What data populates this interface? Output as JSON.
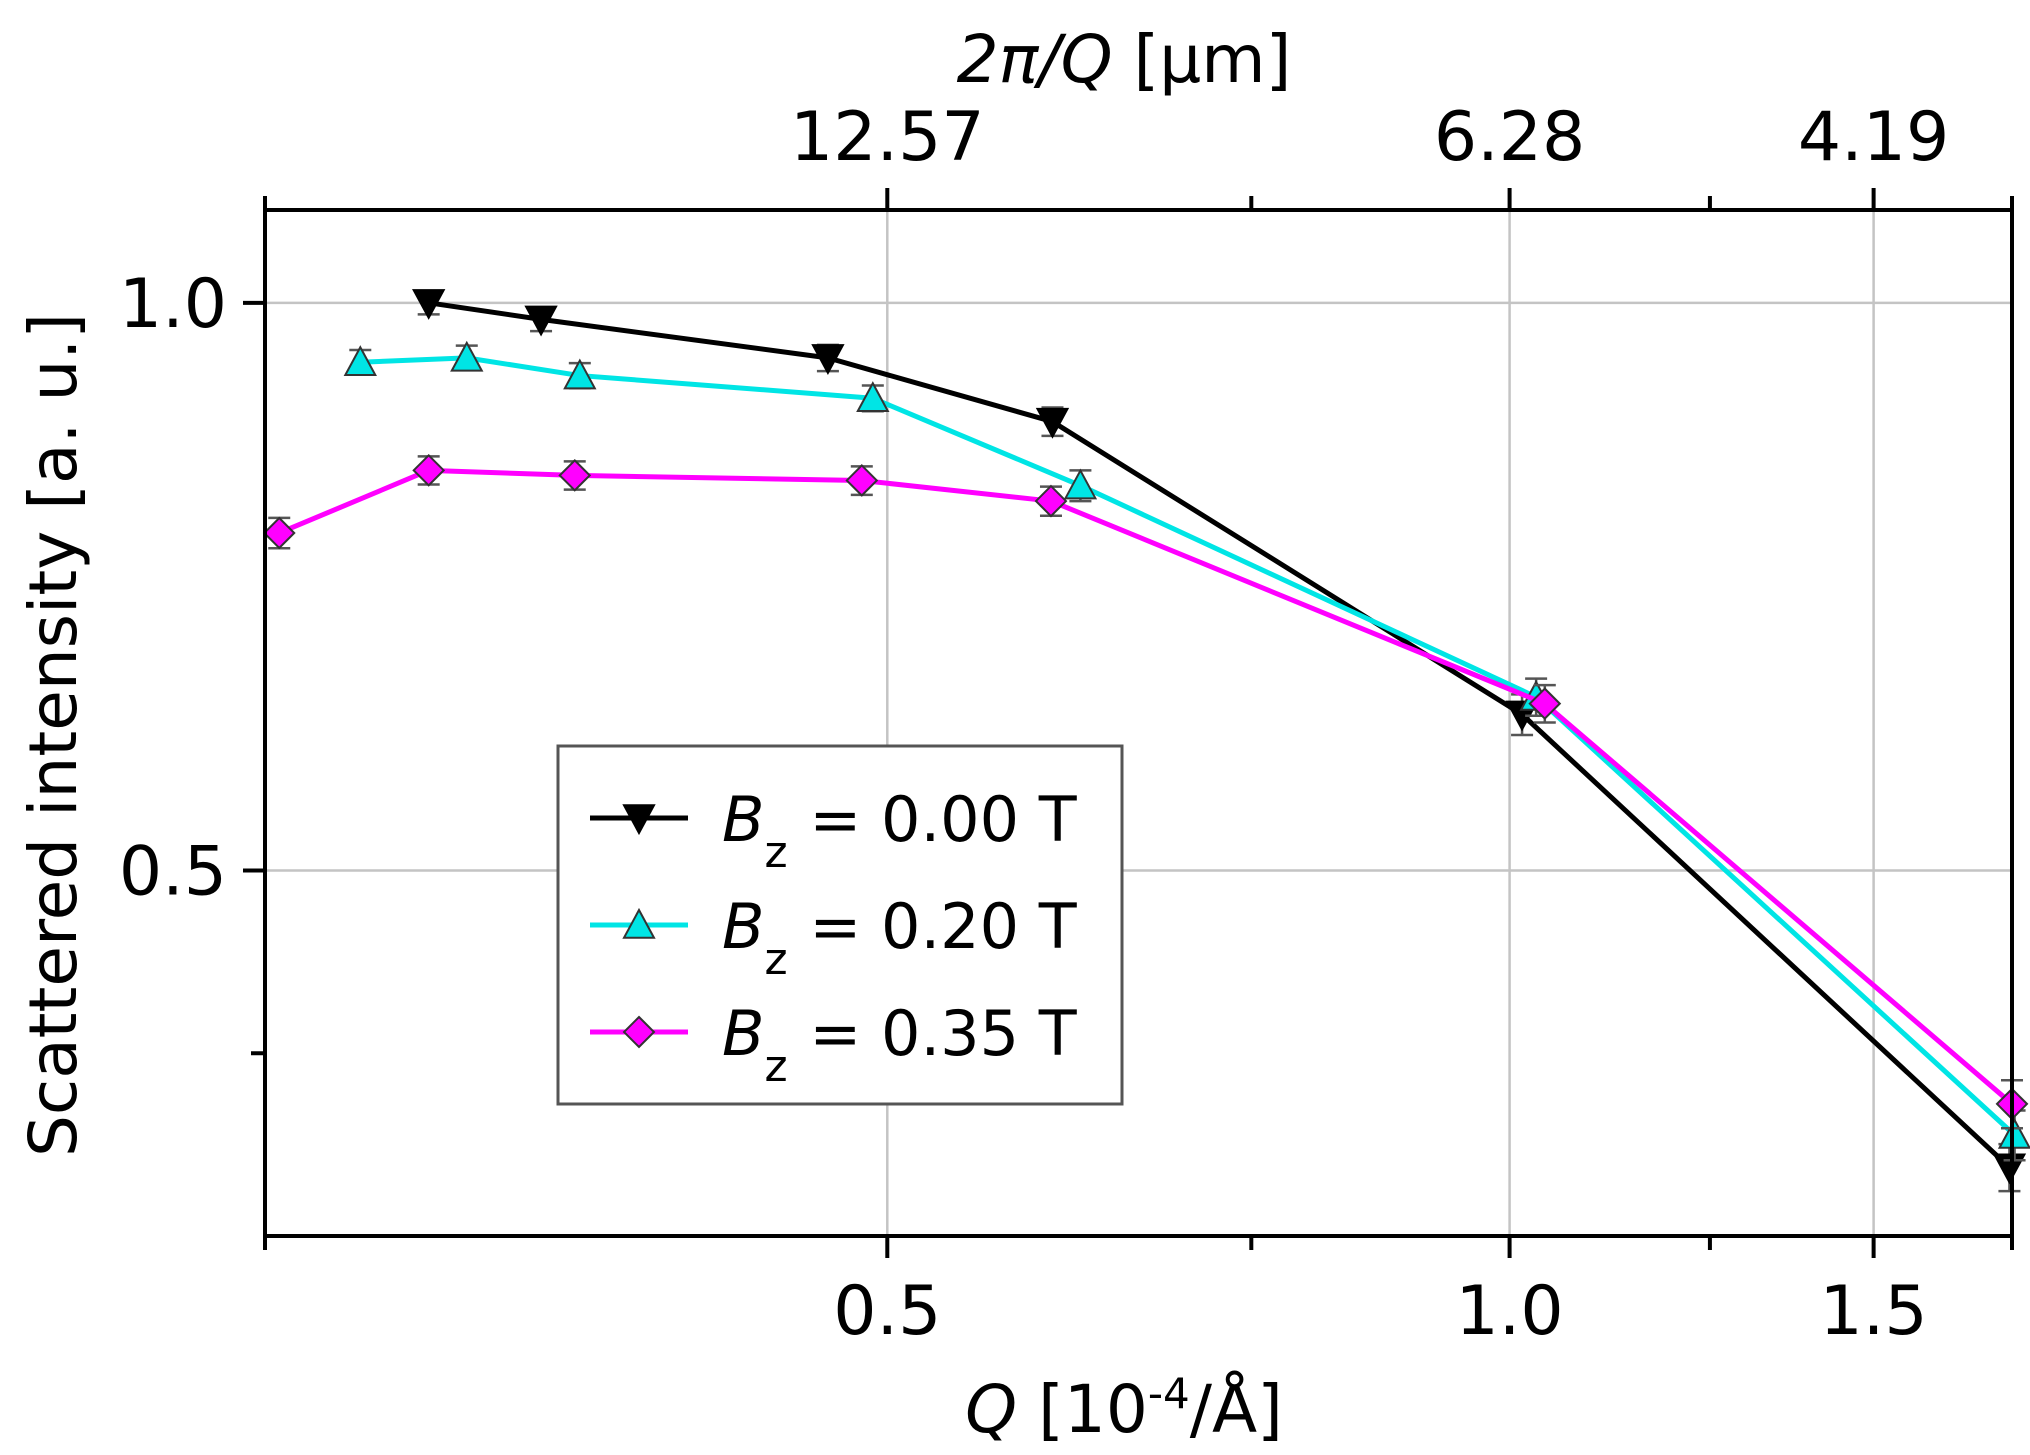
{
  "chart_data": {
    "type": "line",
    "x_axis": {
      "label_italic": "Q",
      "label_pre": " [10",
      "label_sup": "-4",
      "label_post": "/Å]",
      "scale": "log",
      "range": [
        0.25,
        1.75
      ],
      "ticks": [
        0.5,
        1.0,
        1.5
      ],
      "tick_labels": [
        "0.5",
        "1.0",
        "1.5"
      ],
      "minor_ticks": [
        0.25,
        0.75,
        1.25,
        1.75
      ]
    },
    "top_axis": {
      "label_italic": "2π/Q",
      "label_post": " [μm]",
      "ticks_at_q": [
        0.5,
        1.0,
        1.5
      ],
      "tick_labels": [
        "12.57",
        "6.28",
        "4.19"
      ],
      "minor_ticks_at_q": [
        0.25,
        0.75,
        1.25,
        1.75
      ]
    },
    "y_axis": {
      "label": "Scattered intensity [a. u.]",
      "scale": "log",
      "range": [
        0.32,
        1.12
      ],
      "ticks": [
        0.5,
        1.0
      ],
      "tick_labels": [
        "0.5",
        "1.0"
      ],
      "minor_ticks": [
        0.4
      ]
    },
    "grid": true,
    "legend_position": "lower-left",
    "series": [
      {
        "name_pre": "B",
        "name_sub": "z",
        "name_post": " = 0.00 T",
        "color": "#000000",
        "marker": "triangle-down",
        "x": [
          0.3,
          0.34,
          0.468,
          0.601,
          1.014,
          1.745
        ],
        "y": [
          1.0,
          0.98,
          0.935,
          0.865,
          0.605,
          0.348
        ],
        "err": [
          0.014,
          0.014,
          0.015,
          0.015,
          0.015,
          0.01
        ]
      },
      {
        "name_pre": "B",
        "name_sub": "z",
        "name_post": " = 0.20 T",
        "color": "#00e5e5",
        "marker": "triangle-up",
        "x": [
          0.278,
          0.313,
          0.355,
          0.492,
          0.62,
          1.03,
          1.755
        ],
        "y": [
          0.93,
          0.935,
          0.915,
          0.89,
          0.8,
          0.618,
          0.362
        ],
        "err": [
          0.014,
          0.014,
          0.014,
          0.014,
          0.015,
          0.014,
          0.011
        ]
      },
      {
        "name_pre": "B",
        "name_sub": "z",
        "name_post": " = 0.35 T",
        "color": "#ff00ff",
        "marker": "diamond",
        "x": [
          0.254,
          0.3,
          0.353,
          0.486,
          0.6,
          1.04,
          1.75
        ],
        "y": [
          0.755,
          0.815,
          0.81,
          0.805,
          0.785,
          0.613,
          0.376
        ],
        "err": [
          0.014,
          0.014,
          0.014,
          0.014,
          0.014,
          0.014,
          0.011
        ]
      }
    ]
  }
}
